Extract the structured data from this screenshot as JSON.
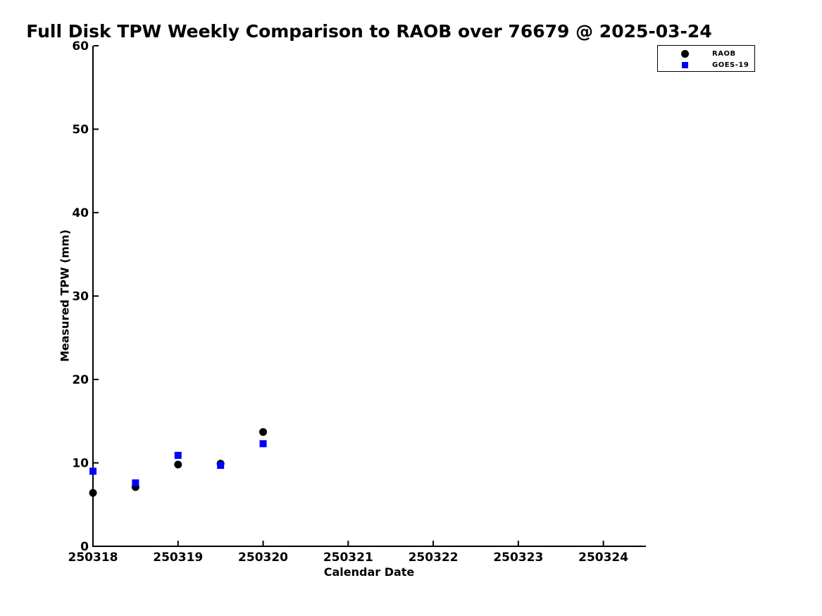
{
  "page": {
    "background": "#ffffff",
    "text_color": "#000000"
  },
  "chart_data": {
    "type": "scatter",
    "title": "Full Disk TPW Weekly Comparison to RAOB over 76679 @ 2025-03-24",
    "xlabel": "Calendar Date",
    "ylabel": "Measured TPW (mm)",
    "xlim": [
      250318,
      250324.5
    ],
    "ylim": [
      0,
      60
    ],
    "x_ticks": [
      250318,
      250319,
      250320,
      250321,
      250322,
      250323,
      250324
    ],
    "x_tick_labels": [
      "250318",
      "250319",
      "250320",
      "250321",
      "250322",
      "250323",
      "250324"
    ],
    "y_ticks": [
      0,
      10,
      20,
      30,
      40,
      50,
      60
    ],
    "y_tick_labels": [
      "0",
      "10",
      "20",
      "30",
      "40",
      "50",
      "60"
    ],
    "grid": false,
    "tick_direction": "in",
    "legend": {
      "position": "outside-upper-right",
      "entries": [
        "RAOB",
        "GOES-19"
      ]
    },
    "series": [
      {
        "name": "RAOB",
        "marker": "circle",
        "color": "#000000",
        "x": [
          250318.0,
          250318.5,
          250319.0,
          250319.5,
          250320.0
        ],
        "y": [
          6.4,
          7.1,
          9.8,
          9.9,
          13.7
        ]
      },
      {
        "name": "GOES-19",
        "marker": "square",
        "color": "#0000ff",
        "x": [
          250318.0,
          250318.5,
          250319.0,
          250319.5,
          250320.0
        ],
        "y": [
          9.0,
          7.6,
          10.9,
          9.7,
          12.3
        ]
      }
    ]
  }
}
